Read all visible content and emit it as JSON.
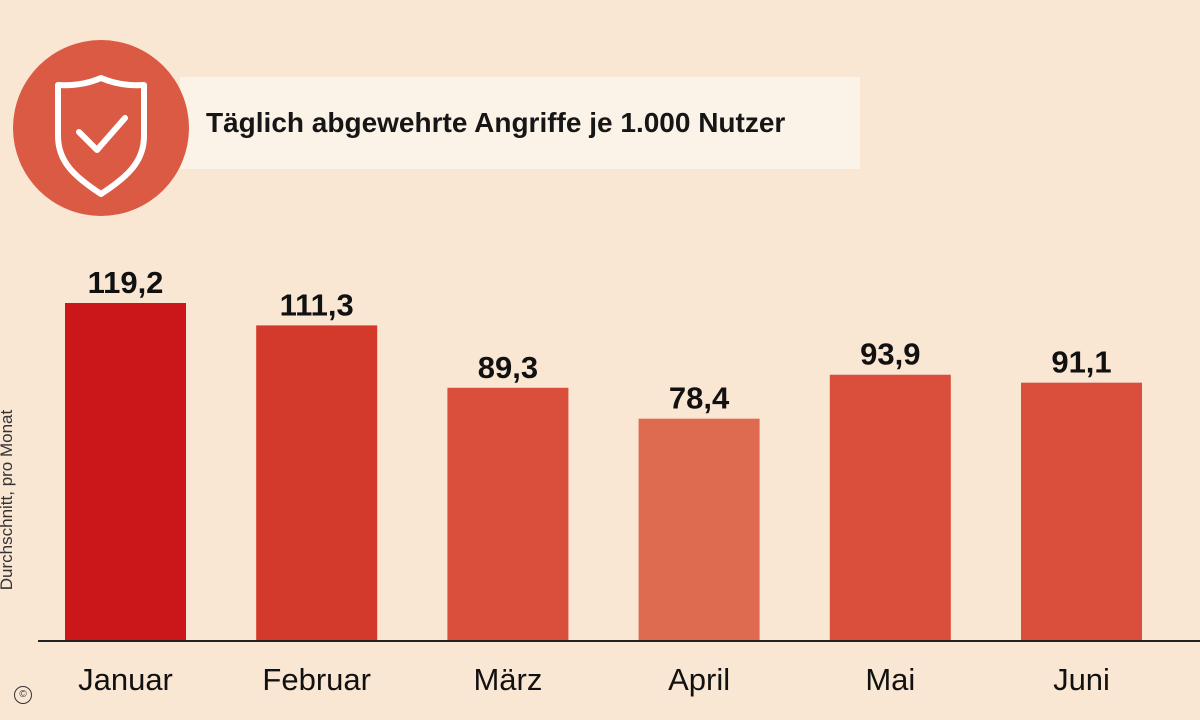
{
  "chart_data": {
    "type": "bar",
    "title": "Täglich abgewehrte Angriffe je 1.000 Nutzer",
    "ylabel": "Durchschnitt, pro Monat",
    "xlabel": "",
    "categories": [
      "Januar",
      "Februar",
      "März",
      "April",
      "Mai",
      "Juni"
    ],
    "values": [
      119.2,
      111.3,
      89.3,
      78.4,
      93.9,
      91.1
    ],
    "value_labels": [
      "119,2",
      "111,3",
      "89,3",
      "78,4",
      "93,9",
      "91,1"
    ],
    "bar_colors": [
      "#cb1719",
      "#d43a2b",
      "#d94f3c",
      "#de6a50",
      "#d94f3c",
      "#d94f3c"
    ],
    "ylim": [
      0,
      120
    ],
    "grid": false,
    "legend": "none"
  },
  "header": {
    "title": "Täglich abgewehrte Angriffe je 1.000 Nutzer",
    "icon": "shield-check-icon"
  },
  "footer": {
    "copyright": "©"
  },
  "colors": {
    "background": "#f9e6d3",
    "title_box": "#fcf3e8",
    "badge": "#db5a43"
  }
}
